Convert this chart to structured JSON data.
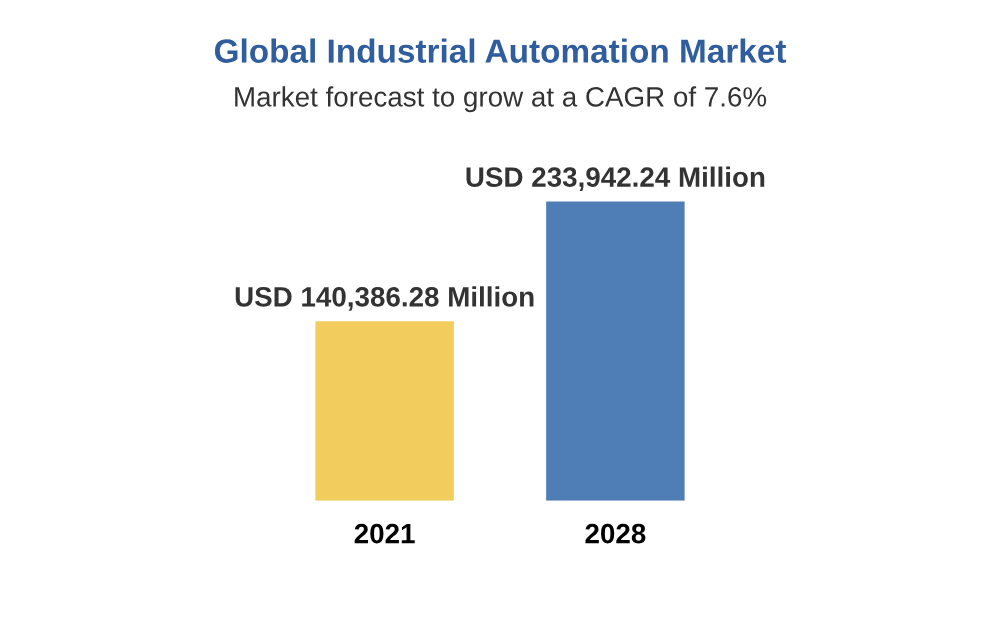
{
  "chart_data": {
    "type": "bar",
    "title": "Global Industrial Automation Market",
    "subtitle": "Market forecast to grow at a CAGR of 7.6%",
    "categories": [
      "2021",
      "2028"
    ],
    "values": [
      140386.28,
      233942.24
    ],
    "colors": [
      "#f2cc5c",
      "#4f7eb6"
    ],
    "value_labels": [
      "USD 140,386.28 Million",
      "USD 233,942.24 Million"
    ],
    "grid": false,
    "legend": false
  }
}
